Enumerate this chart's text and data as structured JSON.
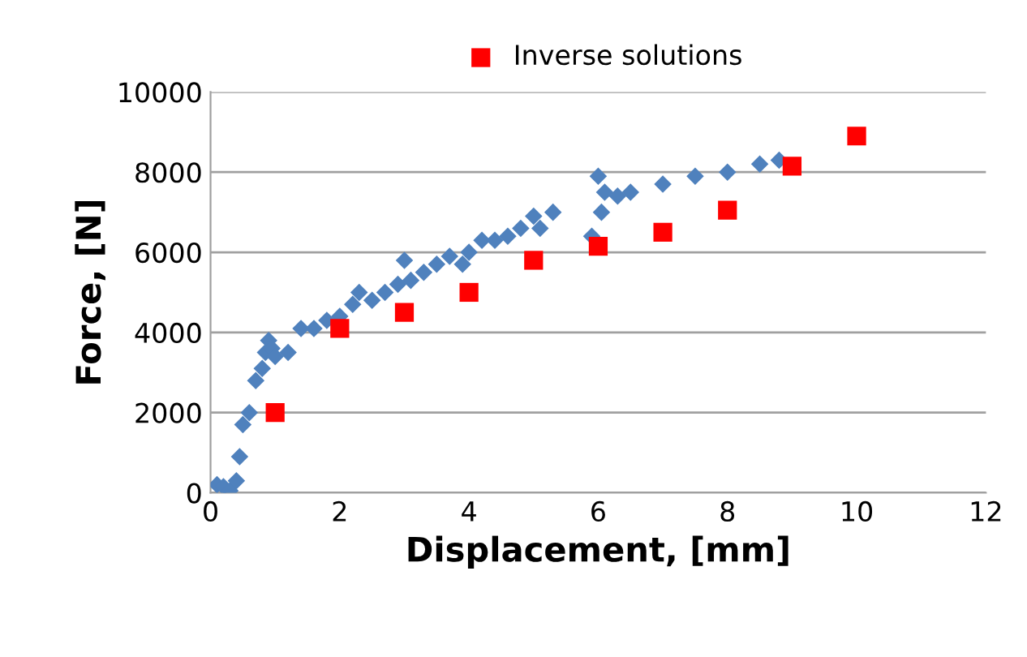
{
  "chart_data": {
    "type": "scatter",
    "xlabel": "Displacement, [mm]",
    "ylabel": "Force, [N]",
    "xlim": [
      0,
      12
    ],
    "xticks": [
      0,
      2,
      4,
      6,
      8,
      10,
      12
    ],
    "ylim": [
      0,
      10000
    ],
    "yticks": [
      0,
      2000,
      4000,
      6000,
      8000,
      10000
    ],
    "grid": "y",
    "legend": "top",
    "series": [
      {
        "color": "#4f81bd",
        "marker": "diamond",
        "x": [
          0.1,
          0.2,
          0.3,
          0.4,
          0.45,
          0.5,
          0.6,
          0.7,
          0.8,
          0.85,
          0.9,
          0.95,
          1.0,
          1.2,
          1.4,
          1.6,
          1.8,
          2.0,
          2.2,
          2.3,
          2.5,
          2.7,
          2.9,
          3.0,
          3.1,
          3.3,
          3.5,
          3.7,
          3.9,
          4.0,
          4.2,
          4.4,
          4.6,
          4.8,
          5.0,
          5.1,
          5.3,
          5.9,
          6.0,
          6.05,
          6.1,
          6.3,
          6.5,
          7.0,
          7.5,
          8.0,
          8.5,
          8.8
        ],
        "values": [
          200,
          150,
          50,
          300,
          900,
          1700,
          2000,
          2800,
          3100,
          3500,
          3800,
          3600,
          3400,
          3500,
          4100,
          4100,
          4300,
          4400,
          4700,
          5000,
          4800,
          5000,
          5200,
          5800,
          5300,
          5500,
          5700,
          5900,
          5700,
          6000,
          6300,
          6300,
          6400,
          6600,
          6900,
          6600,
          7000,
          6400,
          7900,
          7000,
          7500,
          7400,
          7500,
          7700,
          7900,
          8000,
          8200,
          8300
        ]
      },
      {
        "name": "Inverse solutions",
        "color": "#ff0000",
        "marker": "square",
        "x": [
          1,
          2,
          3,
          4,
          5,
          6,
          7,
          8,
          9,
          10
        ],
        "values": [
          2000,
          4100,
          4500,
          5000,
          5800,
          6150,
          6500,
          7050,
          8150,
          8900
        ]
      }
    ]
  }
}
